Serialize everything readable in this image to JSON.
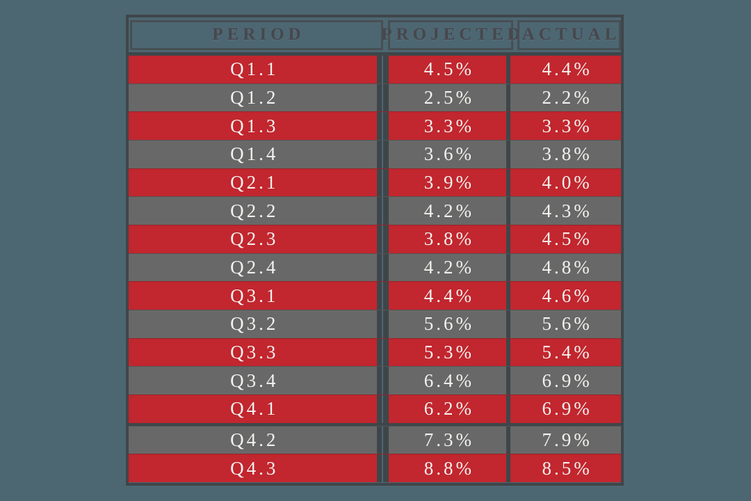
{
  "table": {
    "columns": [
      "PERIOD",
      "PROJECTED",
      "ACTUAL"
    ],
    "rows": [
      {
        "period": "Q1.1",
        "projected": "4.5%",
        "actual": "4.4%",
        "variant": "red"
      },
      {
        "period": "Q1.2",
        "projected": "2.5%",
        "actual": "2.2%",
        "variant": "gray"
      },
      {
        "period": "Q1.3",
        "projected": "3.3%",
        "actual": "3.3%",
        "variant": "red"
      },
      {
        "period": "Q1.4",
        "projected": "3.6%",
        "actual": "3.8%",
        "variant": "gray"
      },
      {
        "period": "Q2.1",
        "projected": "3.9%",
        "actual": "4.0%",
        "variant": "red"
      },
      {
        "period": "Q2.2",
        "projected": "4.2%",
        "actual": "4.3%",
        "variant": "gray"
      },
      {
        "period": "Q2.3",
        "projected": "3.8%",
        "actual": "4.5%",
        "variant": "red"
      },
      {
        "period": "Q2.4",
        "projected": "4.2%",
        "actual": "4.8%",
        "variant": "gray"
      },
      {
        "period": "Q3.1",
        "projected": "4.4%",
        "actual": "4.6%",
        "variant": "red"
      },
      {
        "period": "Q3.2",
        "projected": "5.6%",
        "actual": "5.6%",
        "variant": "gray"
      },
      {
        "period": "Q3.3",
        "projected": "5.3%",
        "actual": "5.4%",
        "variant": "red"
      },
      {
        "period": "Q3.4",
        "projected": "6.4%",
        "actual": "6.9%",
        "variant": "gray"
      },
      {
        "period": "Q4.1",
        "projected": "6.2%",
        "actual": "6.9%",
        "variant": "red"
      },
      {
        "period": "Q4.2",
        "projected": "7.3%",
        "actual": "7.9%",
        "variant": "gray"
      },
      {
        "period": "Q4.3",
        "projected": "8.8%",
        "actual": "8.5%",
        "variant": "red"
      }
    ]
  },
  "colors": {
    "background_teal": "#4d6772",
    "row_red": "#c2262e",
    "row_gray": "#686868",
    "border_dark": "#3e464a",
    "header_text": "#47474d",
    "row_text": "#f3f1ee"
  },
  "chart_data": {
    "type": "table",
    "title": "",
    "columns": [
      "PERIOD",
      "PROJECTED",
      "ACTUAL"
    ],
    "rows": [
      [
        "Q1.1",
        "4.5%",
        "4.4%"
      ],
      [
        "Q1.2",
        "2.5%",
        "2.2%"
      ],
      [
        "Q1.3",
        "3.3%",
        "3.3%"
      ],
      [
        "Q1.4",
        "3.6%",
        "3.8%"
      ],
      [
        "Q2.1",
        "3.9%",
        "4.0%"
      ],
      [
        "Q2.2",
        "4.2%",
        "4.3%"
      ],
      [
        "Q2.3",
        "3.8%",
        "4.5%"
      ],
      [
        "Q2.4",
        "4.2%",
        "4.8%"
      ],
      [
        "Q3.1",
        "4.4%",
        "4.6%"
      ],
      [
        "Q3.2",
        "5.6%",
        "5.6%"
      ],
      [
        "Q3.3",
        "5.3%",
        "5.4%"
      ],
      [
        "Q3.4",
        "6.4%",
        "6.9%"
      ],
      [
        "Q4.1",
        "6.2%",
        "6.9%"
      ],
      [
        "Q4.2",
        "7.3%",
        "7.9%"
      ],
      [
        "Q4.3",
        "8.8%",
        "8.5%"
      ]
    ]
  }
}
